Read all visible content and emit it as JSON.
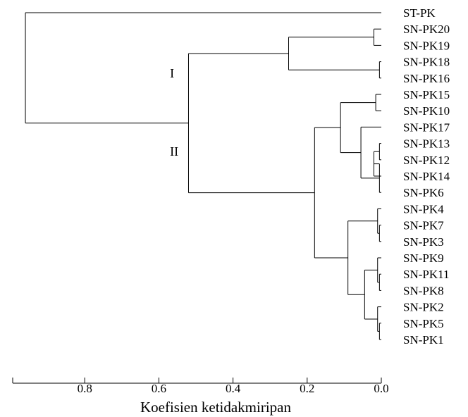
{
  "chart_data": {
    "type": "dendrogram",
    "xlabel": "Koefisien ketidakmiripan",
    "x_range": [
      0.0,
      0.97
    ],
    "x_direction": "reversed",
    "ticks": [
      {
        "value": 0.8,
        "label": "0.8"
      },
      {
        "value": 0.6,
        "label": "0.6"
      },
      {
        "value": 0.4,
        "label": "0.4"
      },
      {
        "value": 0.2,
        "label": "0.2"
      },
      {
        "value": 0.0,
        "label": "0.0"
      }
    ],
    "leaves": [
      "ST-PK",
      "SN-PK20",
      "SN-PK19",
      "SN-PK18",
      "SN-PK16",
      "SN-PK15",
      "SN-PK10",
      "SN-PK17",
      "SN-PK13",
      "SN-PK12",
      "SN-PK14",
      "SN-PK6",
      "SN-PK4",
      "SN-PK7",
      "SN-PK3",
      "SN-PK9",
      "SN-PK11",
      "SN-PK8",
      "SN-PK2",
      "SN-PK5",
      "SN-PK1"
    ],
    "merges": [
      {
        "id": "a",
        "children": [
          "SN-PK20",
          "SN-PK19"
        ],
        "height": 0.02
      },
      {
        "id": "b",
        "children": [
          "SN-PK18",
          "SN-PK16"
        ],
        "height": 0.005
      },
      {
        "id": "c",
        "children": [
          "a",
          "b"
        ],
        "height": 0.25
      },
      {
        "id": "d",
        "children": [
          "SN-PK15",
          "SN-PK10"
        ],
        "height": 0.015
      },
      {
        "id": "e",
        "children": [
          "SN-PK13",
          "SN-PK12"
        ],
        "height": 0.005
      },
      {
        "id": "f",
        "children": [
          "e",
          "SN-PK14"
        ],
        "height": 0.02
      },
      {
        "id": "g",
        "children": [
          "f",
          "SN-PK6"
        ],
        "height": 0.005
      },
      {
        "id": "h",
        "children": [
          "SN-PK17",
          "g"
        ],
        "height": 0.055
      },
      {
        "id": "i",
        "children": [
          "d",
          "h"
        ],
        "height": 0.11
      },
      {
        "id": "j",
        "children": [
          "SN-PK7",
          "SN-PK3"
        ],
        "height": 0.005
      },
      {
        "id": "k",
        "children": [
          "SN-PK4",
          "j"
        ],
        "height": 0.01
      },
      {
        "id": "l",
        "children": [
          "SN-PK11",
          "SN-PK8"
        ],
        "height": 0.005
      },
      {
        "id": "m",
        "children": [
          "SN-PK9",
          "l"
        ],
        "height": 0.01
      },
      {
        "id": "n",
        "children": [
          "SN-PK5",
          "SN-PK1"
        ],
        "height": 0.005
      },
      {
        "id": "o",
        "children": [
          "SN-PK2",
          "n"
        ],
        "height": 0.01
      },
      {
        "id": "p",
        "children": [
          "m",
          "o"
        ],
        "height": 0.045
      },
      {
        "id": "q",
        "children": [
          "k",
          "p"
        ],
        "height": 0.09
      },
      {
        "id": "r",
        "children": [
          "i",
          "q"
        ],
        "height": 0.18
      },
      {
        "id": "s",
        "children": [
          "c",
          "r"
        ],
        "height": 0.52
      },
      {
        "id": "t",
        "children": [
          "ST-PK",
          "s"
        ],
        "height": 0.96
      }
    ],
    "annotations": [
      {
        "id": "cluster-I",
        "text": "I",
        "x": 0.57,
        "leaf_pos": 3.7
      },
      {
        "id": "cluster-II",
        "text": "II",
        "x": 0.57,
        "leaf_pos": 8.5
      }
    ]
  }
}
